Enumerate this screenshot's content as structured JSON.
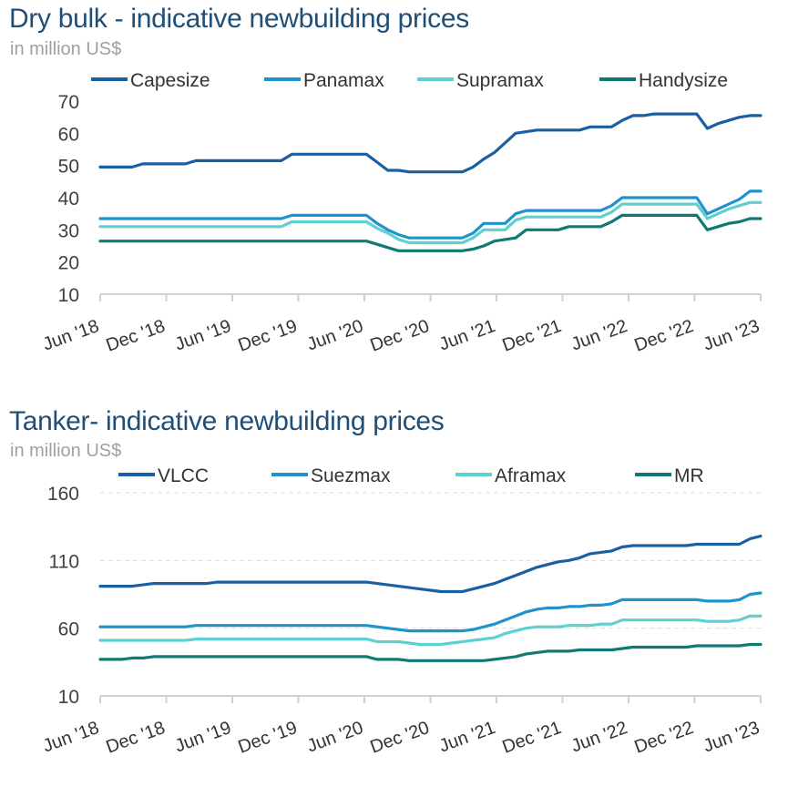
{
  "chart_data": [
    {
      "type": "line",
      "title": "Dry bulk - indicative newbuilding prices",
      "subtitle": "in million US$",
      "xlabel": "",
      "ylabel": "",
      "ylim": [
        10,
        70
      ],
      "yticks": [
        10,
        20,
        30,
        40,
        50,
        60,
        70
      ],
      "grid": false,
      "legend": "top",
      "xtick_labels": [
        "Jun '18",
        "Dec '18",
        "Jun '19",
        "Dec '19",
        "Jun '20",
        "Dec '20",
        "Jun '21",
        "Dec '21",
        "Jun '22",
        "Dec '22",
        "Jun '23"
      ],
      "x_unit": "monthly, Jun 2018 to Jun 2023",
      "series": [
        {
          "name": "Capesize",
          "color": "#1b5fa3",
          "values": [
            49.5,
            49.5,
            49.5,
            49.5,
            50.5,
            50.5,
            50.5,
            50.5,
            50.5,
            51.5,
            51.5,
            51.5,
            51.5,
            51.5,
            51.5,
            51.5,
            51.5,
            51.5,
            53.5,
            53.5,
            53.5,
            53.5,
            53.5,
            53.5,
            53.5,
            53.5,
            51,
            48.5,
            48.5,
            48,
            48,
            48,
            48,
            48,
            48,
            49.5,
            52,
            54,
            57,
            60,
            60.5,
            61,
            61,
            61,
            61,
            61,
            62,
            62,
            62,
            64,
            65.5,
            65.5,
            66,
            66,
            66,
            66,
            66,
            61.5,
            63,
            64,
            65,
            65.5,
            65.5
          ]
        },
        {
          "name": "Panamax",
          "color": "#1f93cc",
          "values": [
            33.5,
            33.5,
            33.5,
            33.5,
            33.5,
            33.5,
            33.5,
            33.5,
            33.5,
            33.5,
            33.5,
            33.5,
            33.5,
            33.5,
            33.5,
            33.5,
            33.5,
            33.5,
            34.5,
            34.5,
            34.5,
            34.5,
            34.5,
            34.5,
            34.5,
            34.5,
            32,
            30,
            28.5,
            27.5,
            27.5,
            27.5,
            27.5,
            27.5,
            27.5,
            29,
            32,
            32,
            32,
            35,
            36,
            36,
            36,
            36,
            36,
            36,
            36,
            36,
            37.5,
            40,
            40,
            40,
            40,
            40,
            40,
            40,
            40,
            35,
            36.5,
            38,
            39.5,
            42,
            42
          ]
        },
        {
          "name": "Supramax",
          "color": "#5fcfcf",
          "values": [
            31,
            31,
            31,
            31,
            31,
            31,
            31,
            31,
            31,
            31,
            31,
            31,
            31,
            31,
            31,
            31,
            31,
            31,
            32.5,
            32.5,
            32.5,
            32.5,
            32.5,
            32.5,
            32.5,
            32.5,
            30.5,
            29,
            27,
            26,
            26,
            26,
            26,
            26,
            26,
            27.5,
            30,
            30,
            30,
            33,
            34,
            34,
            34,
            34,
            34,
            34,
            34,
            34,
            35.5,
            38,
            38,
            38,
            38,
            38,
            38,
            38,
            38,
            33.5,
            35,
            36.5,
            37.5,
            38.5,
            38.5
          ]
        },
        {
          "name": "Handysize",
          "color": "#0e7a73",
          "values": [
            26.5,
            26.5,
            26.5,
            26.5,
            26.5,
            26.5,
            26.5,
            26.5,
            26.5,
            26.5,
            26.5,
            26.5,
            26.5,
            26.5,
            26.5,
            26.5,
            26.5,
            26.5,
            26.5,
            26.5,
            26.5,
            26.5,
            26.5,
            26.5,
            26.5,
            26.5,
            25.5,
            24.5,
            23.5,
            23.5,
            23.5,
            23.5,
            23.5,
            23.5,
            23.5,
            24,
            25,
            26.5,
            27,
            27.5,
            30,
            30,
            30,
            30,
            31,
            31,
            31,
            31,
            32.5,
            34.5,
            34.5,
            34.5,
            34.5,
            34.5,
            34.5,
            34.5,
            34.5,
            30,
            31,
            32,
            32.5,
            33.5,
            33.5
          ]
        }
      ]
    },
    {
      "type": "line",
      "title": "Tanker- indicative newbuilding prices",
      "subtitle": "in million US$",
      "xlabel": "",
      "ylabel": "",
      "ylim": [
        10,
        160
      ],
      "yticks": [
        10,
        60,
        110,
        160
      ],
      "grid": true,
      "legend": "top",
      "xtick_labels": [
        "Jun '18",
        "Dec '18",
        "Jun '19",
        "Dec '19",
        "Jun '20",
        "Dec '20",
        "Jun '21",
        "Dec '21",
        "Jun '22",
        "Dec '22",
        "Jun '23"
      ],
      "x_unit": "monthly, Jun 2018 to Jun 2023",
      "series": [
        {
          "name": "VLCC",
          "color": "#1b5fa3",
          "values": [
            91,
            91,
            91,
            91,
            92,
            93,
            93,
            93,
            93,
            93,
            93,
            94,
            94,
            94,
            94,
            94,
            94,
            94,
            94,
            94,
            94,
            94,
            94,
            94,
            94,
            94,
            93,
            92,
            91,
            90,
            89,
            88,
            87,
            87,
            87,
            89,
            91,
            93,
            96,
            99,
            102,
            105,
            107,
            109,
            110,
            112,
            115,
            116,
            117,
            120,
            121,
            121,
            121,
            121,
            121,
            121,
            122,
            122,
            122,
            122,
            122,
            126,
            128
          ]
        },
        {
          "name": "Suezmax",
          "color": "#1f93cc",
          "values": [
            61,
            61,
            61,
            61,
            61,
            61,
            61,
            61,
            61,
            62,
            62,
            62,
            62,
            62,
            62,
            62,
            62,
            62,
            62,
            62,
            62,
            62,
            62,
            62,
            62,
            62,
            61,
            60,
            59,
            58,
            58,
            58,
            58,
            58,
            58,
            59,
            61,
            63,
            66,
            69,
            72,
            74,
            75,
            75,
            76,
            76,
            77,
            77,
            78,
            81,
            81,
            81,
            81,
            81,
            81,
            81,
            81,
            80,
            80,
            80,
            81,
            85,
            86
          ]
        },
        {
          "name": "Aframax",
          "color": "#5fcfcf",
          "values": [
            51,
            51,
            51,
            51,
            51,
            51,
            51,
            51,
            51,
            52,
            52,
            52,
            52,
            52,
            52,
            52,
            52,
            52,
            52,
            52,
            52,
            52,
            52,
            52,
            52,
            52,
            50,
            50,
            50,
            49,
            48,
            48,
            48,
            49,
            50,
            51,
            52,
            53,
            56,
            58,
            60,
            61,
            61,
            61,
            62,
            62,
            62,
            63,
            63,
            66,
            66,
            66,
            66,
            66,
            66,
            66,
            66,
            65,
            65,
            65,
            66,
            69,
            69
          ]
        },
        {
          "name": "MR",
          "color": "#0e7a73",
          "values": [
            37,
            37,
            37,
            38,
            38,
            39,
            39,
            39,
            39,
            39,
            39,
            39,
            39,
            39,
            39,
            39,
            39,
            39,
            39,
            39,
            39,
            39,
            39,
            39,
            39,
            39,
            37,
            37,
            37,
            36,
            36,
            36,
            36,
            36,
            36,
            36,
            36,
            37,
            38,
            39,
            41,
            42,
            43,
            43,
            43,
            44,
            44,
            44,
            44,
            45,
            46,
            46,
            46,
            46,
            46,
            46,
            47,
            47,
            47,
            47,
            47,
            48,
            48
          ]
        }
      ]
    }
  ]
}
